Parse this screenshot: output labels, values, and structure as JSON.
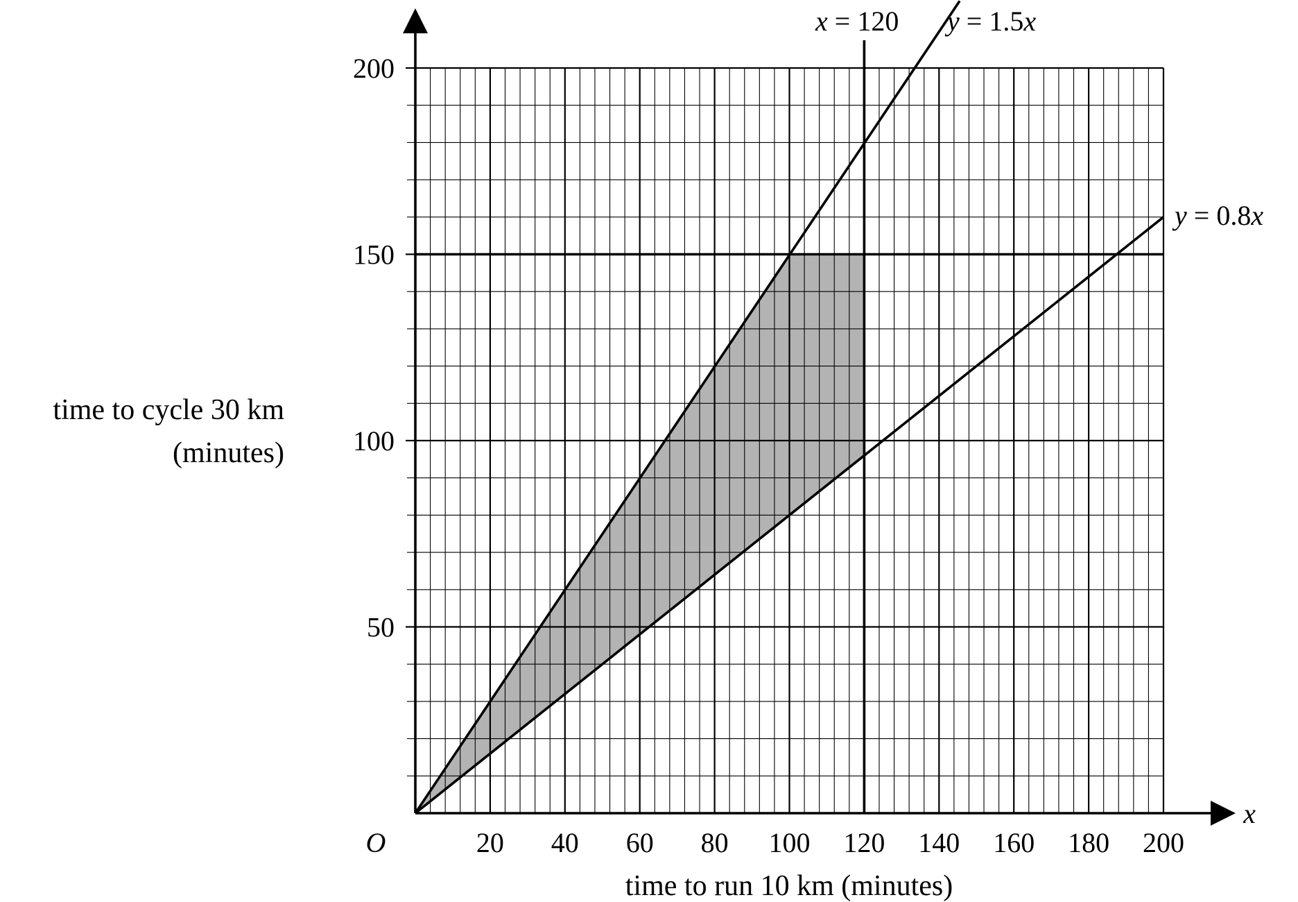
{
  "chart_data": {
    "type": "line",
    "xlabel": "time to run 10 km (minutes)",
    "ylabel_lines": [
      "time to cycle 30 km",
      "(minutes)"
    ],
    "x_axis_symbol": "x",
    "origin_label": "O",
    "xlim": [
      0,
      200
    ],
    "ylim": [
      0,
      200
    ],
    "x_ticks": [
      20,
      40,
      60,
      80,
      100,
      120,
      140,
      160,
      180,
      200
    ],
    "y_ticks": [
      50,
      100,
      150,
      200
    ],
    "grid": true,
    "lines": [
      {
        "label_var": "x",
        "label_rest": " = 120",
        "kind": "vertical",
        "x": 120,
        "y_from": 0,
        "y_to": 200
      },
      {
        "label_var": "y",
        "label_rest": " = 1.5",
        "label_var2": "x",
        "kind": "line",
        "points": [
          [
            0,
            0
          ],
          [
            133.5,
            200
          ]
        ]
      },
      {
        "label_var": "y",
        "label_rest": " = 0.8",
        "label_var2": "x",
        "kind": "line",
        "points": [
          [
            0,
            0
          ],
          [
            200,
            160
          ]
        ]
      },
      {
        "kind": "horizontal",
        "y": 150,
        "x_from": 0,
        "x_to": 200
      }
    ],
    "shaded_region": {
      "fill": "#b3b3b3",
      "vertices": [
        [
          0,
          0
        ],
        [
          100,
          150
        ],
        [
          120,
          150
        ],
        [
          120,
          96
        ]
      ]
    }
  }
}
